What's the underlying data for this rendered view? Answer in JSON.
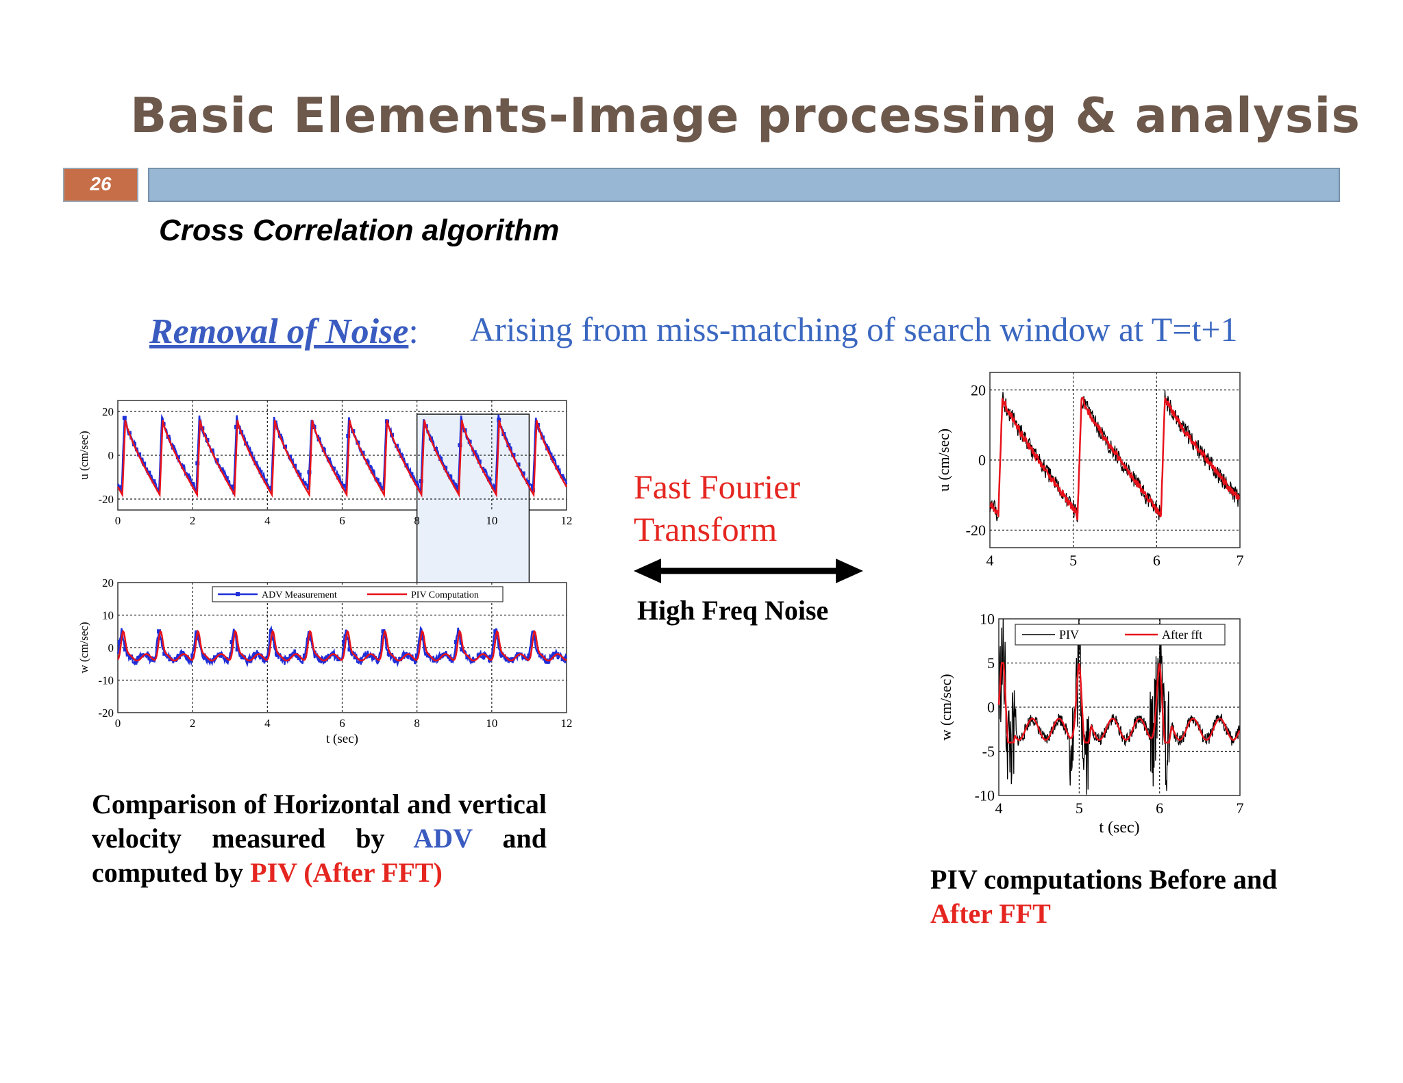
{
  "slide": {
    "title": "Basic Elements-Image processing & analysis",
    "number": "26",
    "subtitle": "Cross Correlation algorithm"
  },
  "noise": {
    "label": "Removal of Noise",
    "colon": ":",
    "description": "Arising from miss-matching of search window at T=t+1"
  },
  "fft": {
    "line1": "Fast Fourier",
    "line2": "Transform",
    "arrow_label": "High Freq Noise"
  },
  "caption_left": {
    "text_before": "Comparison of  Horizontal and vertical velocity measured by ",
    "adv": "ADV",
    "text_middle": " and computed by ",
    "piv": "PIV (After FFT)"
  },
  "caption_right": {
    "text_before": "PIV computations Before and",
    "after": "After FFT"
  },
  "colors": {
    "title": "#6d584c",
    "number_box": "#c66e47",
    "title_bar": "#98b7d4",
    "blue_text": "#3a5bc0",
    "red_text": "#e52620",
    "adv_series": "#1f2fd8",
    "piv_series": "#e8121b",
    "raw_piv": "#000000"
  },
  "chart_data": [
    {
      "type": "line",
      "ylabel": "u (cm/sec)",
      "xlim": [
        0,
        12
      ],
      "ylim": [
        -25,
        25
      ],
      "xticks": [
        "0",
        "2",
        "4",
        "6",
        "8",
        "10",
        "12"
      ],
      "yticks": [
        "20",
        "0",
        "-20"
      ],
      "grid": true,
      "highlight_window": [
        8,
        11
      ],
      "series": [
        {
          "name": "ADV Measurement",
          "period_sec": 1.0,
          "peak": 17,
          "trough": -16
        },
        {
          "name": "PIV Computation",
          "period_sec": 1.0,
          "peak": 16,
          "trough": -18
        }
      ]
    },
    {
      "type": "line",
      "ylabel": "w (cm/sec)",
      "xlabel": "t (sec)",
      "xlim": [
        0,
        12
      ],
      "ylim": [
        -20,
        20
      ],
      "xticks": [
        "0",
        "2",
        "4",
        "6",
        "8",
        "10",
        "12"
      ],
      "yticks": [
        "20",
        "10",
        "0",
        "-10",
        "-20"
      ],
      "grid": true,
      "legend": "top-center",
      "highlight_window": [
        8,
        11
      ],
      "series": [
        {
          "name": "ADV Measurement",
          "period_sec": 1.0,
          "peak": 5,
          "trough": -3
        },
        {
          "name": "PIV Computation",
          "period_sec": 1.0,
          "peak": 5,
          "trough": -3
        }
      ]
    },
    {
      "type": "line",
      "ylabel": "u (cm/sec)",
      "xlim": [
        4,
        7
      ],
      "ylim": [
        -25,
        25
      ],
      "xticks": [
        "4",
        "5",
        "6",
        "7"
      ],
      "yticks": [
        "20",
        "0",
        "-20"
      ],
      "grid": true,
      "series": [
        {
          "name": "PIV",
          "peaks_at": [
            4.15,
            5.1,
            6.1
          ],
          "peak": 20,
          "trough": -17
        },
        {
          "name": "After fft",
          "peaks_at": [
            4.15,
            5.1,
            6.1
          ],
          "peak": 18,
          "trough": -17
        }
      ]
    },
    {
      "type": "line",
      "ylabel": "w (cm/sec)",
      "xlabel": "t (sec)",
      "xlim": [
        4,
        7
      ],
      "ylim": [
        -10,
        10
      ],
      "xticks": [
        "4",
        "5",
        "6",
        "7"
      ],
      "yticks": [
        "10",
        "5",
        "0",
        "-5",
        "-10"
      ],
      "grid": true,
      "legend": "top-right",
      "series": [
        {
          "name": "PIV",
          "peaks_at": [
            4.1,
            5.0,
            6.0
          ],
          "peak": 7,
          "trough": -10
        },
        {
          "name": "After fft",
          "peaks_at": [
            4.05,
            5.0,
            6.0
          ],
          "peak": 5,
          "trough": -4
        }
      ]
    }
  ]
}
